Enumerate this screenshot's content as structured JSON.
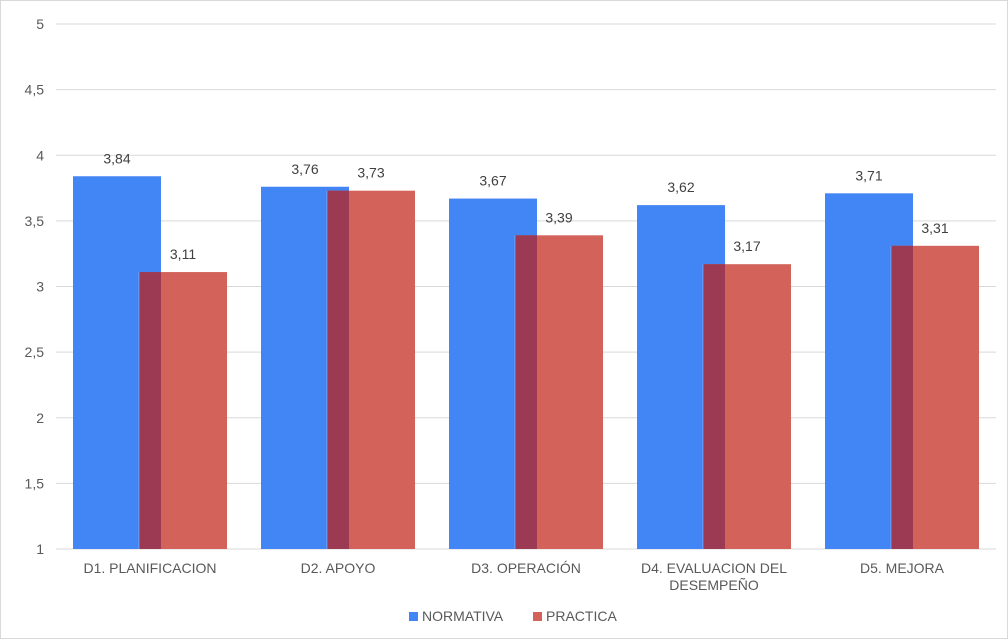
{
  "chart_data": {
    "type": "bar",
    "categories": [
      [
        "D1. PLANIFICACION"
      ],
      [
        "D2. APOYO"
      ],
      [
        "D3. OPERACIÓN"
      ],
      [
        "D4. EVALUACION DEL",
        "DESEMPEÑO"
      ],
      [
        "D5. MEJORA"
      ]
    ],
    "series": [
      {
        "name": "NORMATIVA",
        "color": "#4285f4",
        "values": [
          3.84,
          3.76,
          3.67,
          3.62,
          3.71
        ],
        "value_labels": [
          "3,84",
          "3,76",
          "3,67",
          "3,62",
          "3,71"
        ]
      },
      {
        "name": "PRACTICA",
        "color": "#d2625a",
        "values": [
          3.11,
          3.73,
          3.39,
          3.17,
          3.31
        ],
        "value_labels": [
          "3,11",
          "3,73",
          "3,39",
          "3,17",
          "3,31"
        ]
      }
    ],
    "overlap_color": "#9b3a52",
    "ylim": [
      1,
      5
    ],
    "yticks": [
      1,
      1.5,
      2,
      2.5,
      3,
      3.5,
      4,
      4.5,
      5
    ],
    "ytick_labels": [
      "1",
      "1,5",
      "2",
      "2,5",
      "3",
      "3,5",
      "4",
      "4,5",
      "5"
    ],
    "grid": true,
    "legend": "bottom"
  }
}
